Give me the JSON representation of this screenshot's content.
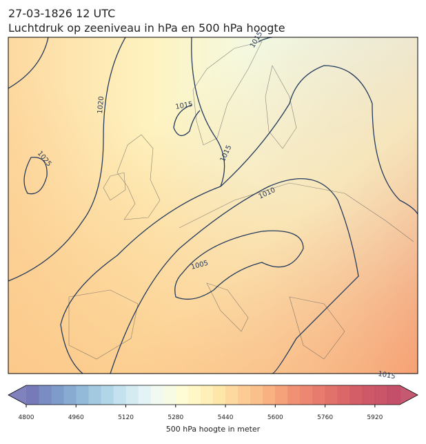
{
  "header": {
    "title": "27-03-1826 12 UTC",
    "subtitle": "Luchtdruk op zeeniveau in hPa en 500 hPa hoogte"
  },
  "map": {
    "contour_labels": [
      "1015",
      "1020",
      "1025",
      "1015",
      "1015",
      "1010",
      "1005",
      "1015"
    ]
  },
  "colorbar": {
    "lim": [
      4800,
      6000
    ],
    "ticks": [
      4800,
      4960,
      5120,
      5280,
      5440,
      5600,
      5760,
      5920
    ],
    "label": "500 hPa hoogte in meter",
    "colors": [
      "#686cb0",
      "#6b7fbb",
      "#7190c4",
      "#7ba2cc",
      "#88b3d5",
      "#98c3dd",
      "#a9d1e5",
      "#bcdeec",
      "#cfe9f1",
      "#e1f2f4",
      "#eff8ee",
      "#f7fbe0",
      "#fdfccf",
      "#fff6c0",
      "#ffedb0",
      "#fee3a2",
      "#fdd595",
      "#fcc788",
      "#fab97e",
      "#f8a874",
      "#f4976c",
      "#ef8565",
      "#ea7a62",
      "#e46e5e",
      "#dd625b",
      "#d75658",
      "#cf4d57",
      "#c94657",
      "#c44158",
      "#bc3c59"
    ]
  }
}
